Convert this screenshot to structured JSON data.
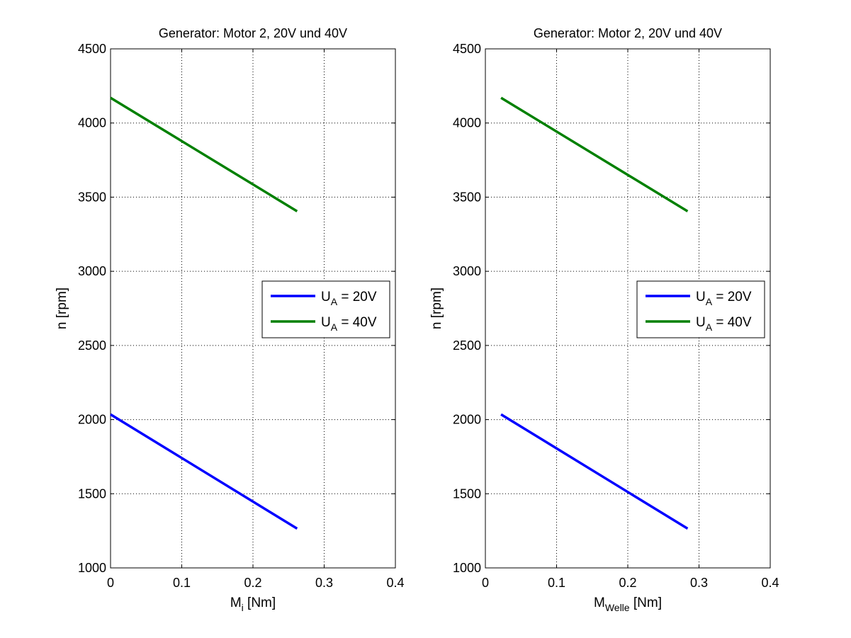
{
  "chart_data": [
    {
      "type": "line",
      "title": "Generator: Motor 2, 20V und 40V",
      "xlabel": {
        "main": "M",
        "sub": "i",
        "suffix": " [Nm]"
      },
      "ylabel": "n [rpm]",
      "xlim": [
        0,
        0.4
      ],
      "ylim": [
        1000,
        4500
      ],
      "xticks": [
        0,
        0.1,
        0.2,
        0.3,
        0.4
      ],
      "xtick_labels": [
        "0",
        "0.1",
        "0.2",
        "0.3",
        "0.4"
      ],
      "yticks": [
        1000,
        1500,
        2000,
        2500,
        3000,
        3500,
        4000,
        4500
      ],
      "ytick_labels": [
        "1000",
        "1500",
        "2000",
        "2500",
        "3000",
        "3500",
        "4000",
        "4500"
      ],
      "grid": true,
      "legend_position": "right",
      "series": [
        {
          "label": {
            "main": "U",
            "sub": "A",
            "suffix": " = 20V"
          },
          "color": "#0000ff",
          "x": [
            0.0,
            0.262
          ],
          "y": [
            2035,
            1265
          ]
        },
        {
          "label": {
            "main": "U",
            "sub": "A",
            "suffix": " = 40V"
          },
          "color": "#008000",
          "x": [
            0.0,
            0.262
          ],
          "y": [
            4170,
            3405
          ]
        }
      ]
    },
    {
      "type": "line",
      "title": "Generator: Motor 2, 20V und 40V",
      "xlabel": {
        "main": "M",
        "sub": "Welle",
        "suffix": " [Nm]"
      },
      "ylabel": "n [rpm]",
      "xlim": [
        0,
        0.4
      ],
      "ylim": [
        1000,
        4500
      ],
      "xticks": [
        0,
        0.1,
        0.2,
        0.3,
        0.4
      ],
      "xtick_labels": [
        "0",
        "0.1",
        "0.2",
        "0.3",
        "0.4"
      ],
      "yticks": [
        1000,
        1500,
        2000,
        2500,
        3000,
        3500,
        4000,
        4500
      ],
      "ytick_labels": [
        "1000",
        "1500",
        "2000",
        "2500",
        "3000",
        "3500",
        "4000",
        "4500"
      ],
      "grid": true,
      "legend_position": "right",
      "series": [
        {
          "label": {
            "main": "U",
            "sub": "A",
            "suffix": " = 20V"
          },
          "color": "#0000ff",
          "x": [
            0.022,
            0.284
          ],
          "y": [
            2035,
            1265
          ]
        },
        {
          "label": {
            "main": "U",
            "sub": "A",
            "suffix": " = 40V"
          },
          "color": "#008000",
          "x": [
            0.022,
            0.284
          ],
          "y": [
            4170,
            3405
          ]
        }
      ]
    }
  ]
}
